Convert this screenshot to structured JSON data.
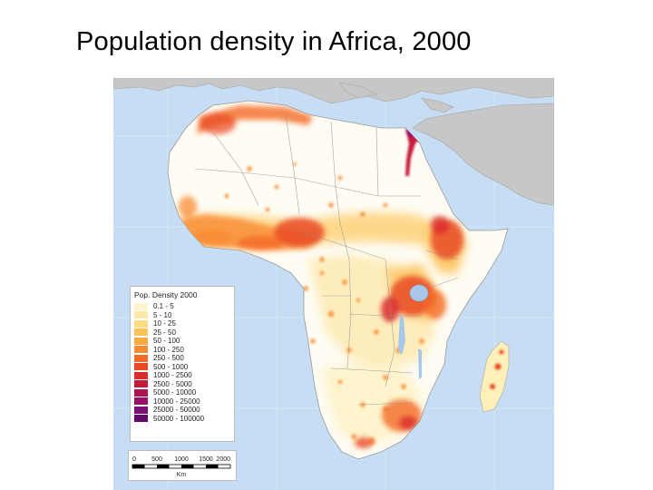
{
  "title": "Population density in Africa, 2000",
  "colors": {
    "ocean": "#c6ddf4",
    "other_land": "#c7c7c7",
    "africa_base": "#fefcf3",
    "low": "#fde59a",
    "mid": "#f9a23c",
    "high": "#e0462a",
    "very_high": "#b0123f"
  },
  "legend": {
    "title": "Pop. Density 2000",
    "items": [
      {
        "label": "0.1 - 5",
        "color": "#fff5cc"
      },
      {
        "label": "5 - 10",
        "color": "#fee9a6"
      },
      {
        "label": "10 - 25",
        "color": "#fddc82"
      },
      {
        "label": "25 - 50",
        "color": "#fcc35a"
      },
      {
        "label": "50 - 100",
        "color": "#fba941"
      },
      {
        "label": "100 - 250",
        "color": "#f98b32"
      },
      {
        "label": "250 - 500",
        "color": "#f46a27"
      },
      {
        "label": "500 - 1000",
        "color": "#e94a25"
      },
      {
        "label": "1000 - 2500",
        "color": "#d92b2b"
      },
      {
        "label": "2500 - 5000",
        "color": "#c41b3c"
      },
      {
        "label": "5000 - 10000",
        "color": "#ae1452"
      },
      {
        "label": "10000 - 25000",
        "color": "#971167"
      },
      {
        "label": "25000 - 50000",
        "color": "#7e0f73"
      },
      {
        "label": "50000 - 100000",
        "color": "#5f0a6b"
      }
    ]
  },
  "scale_bar": {
    "ticks": [
      "0",
      "500",
      "1000",
      "1500",
      "2000"
    ],
    "unit": "Km"
  }
}
